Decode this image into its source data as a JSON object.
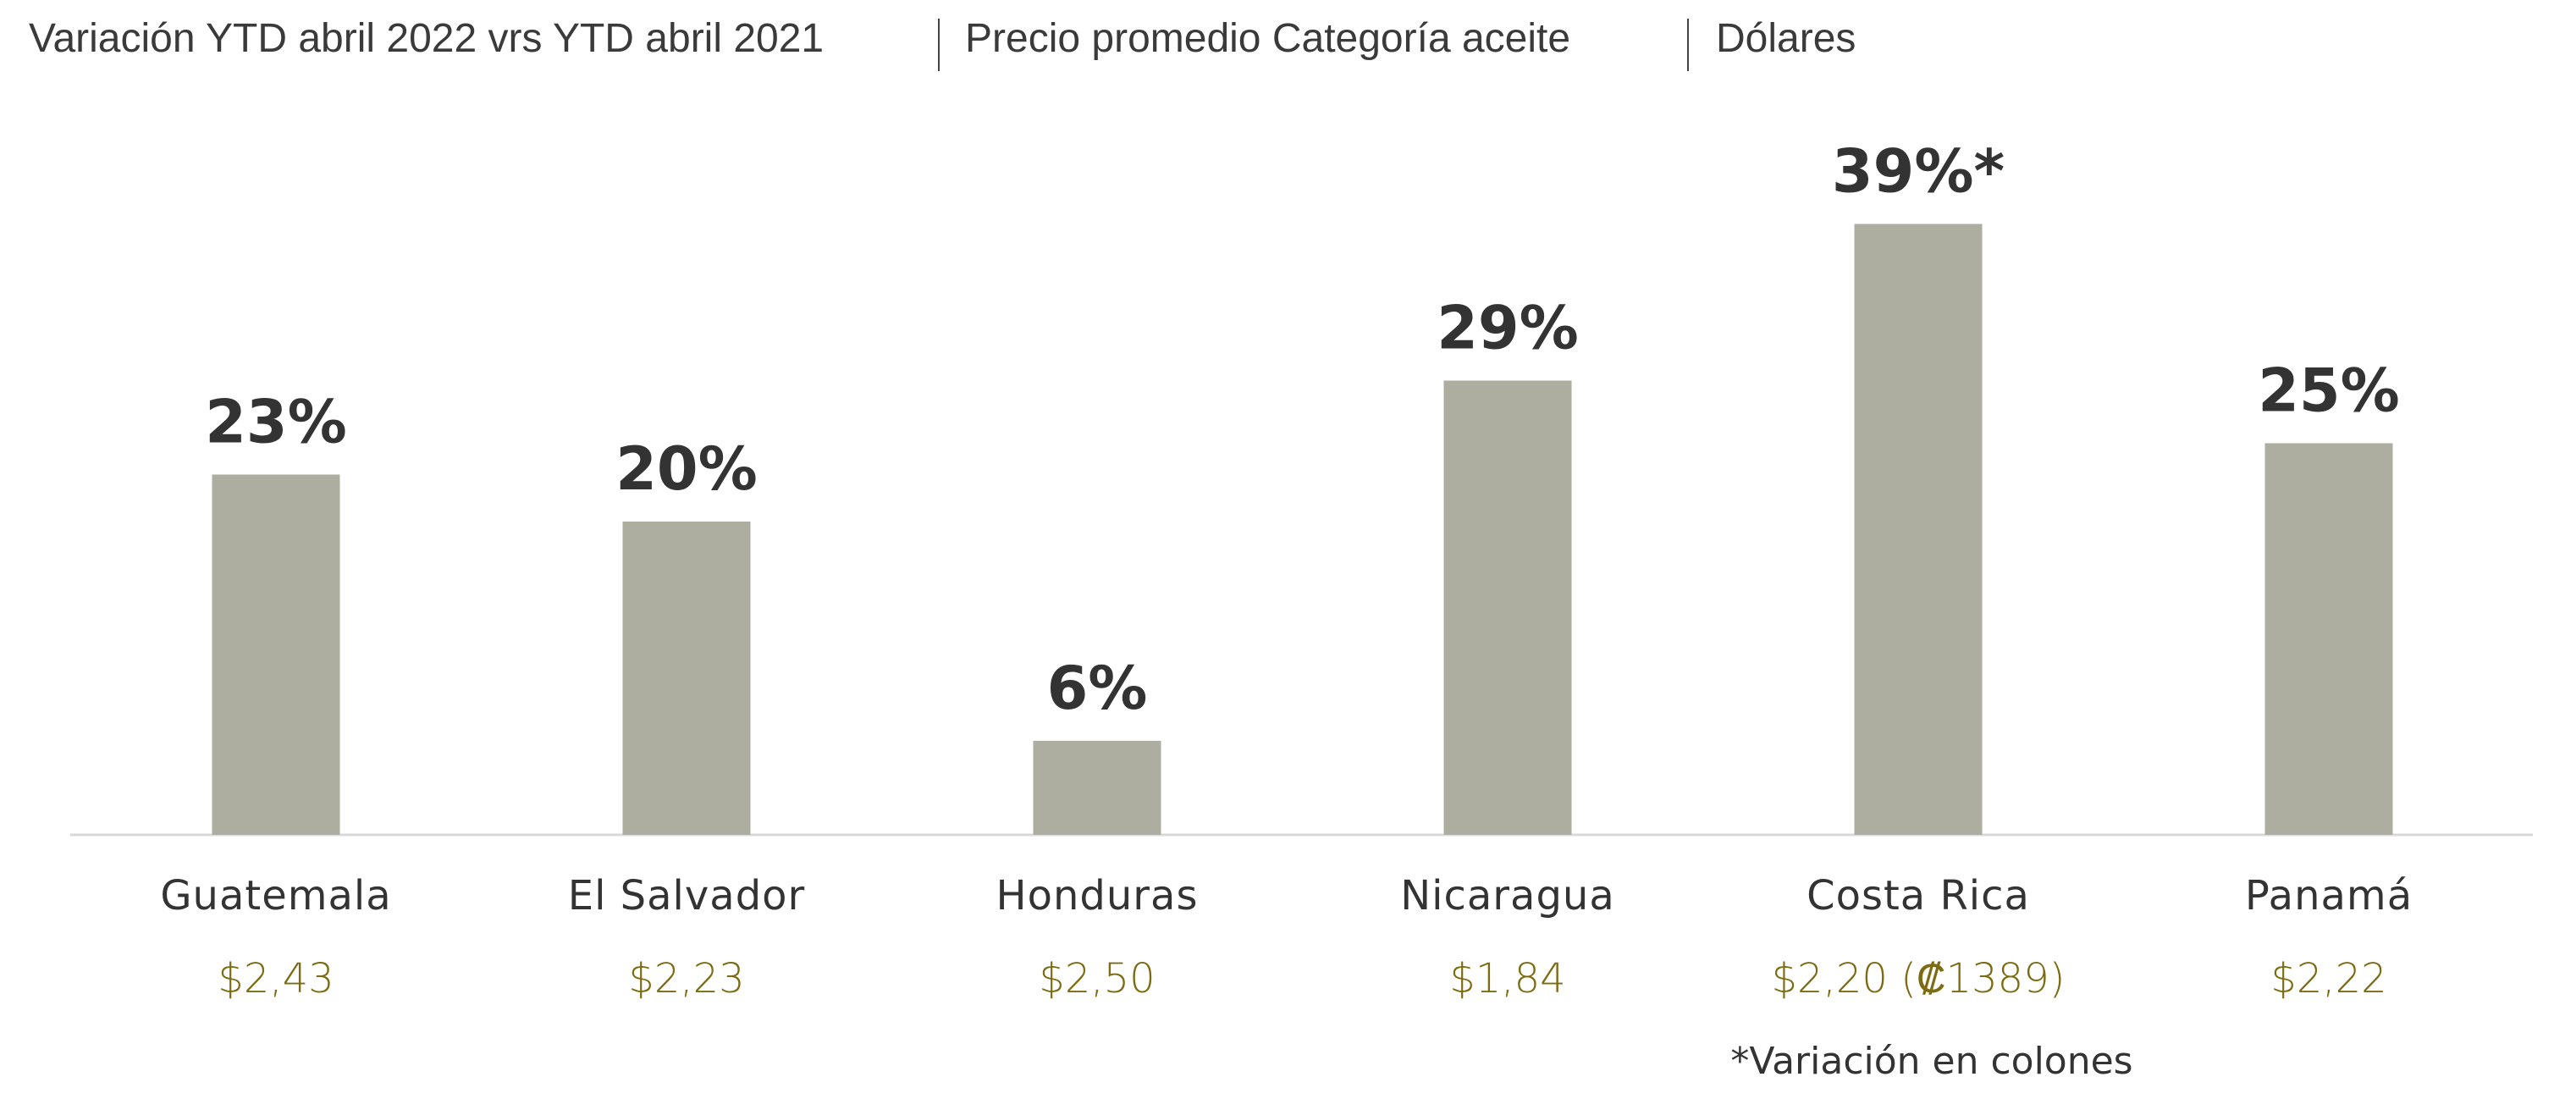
{
  "chart_data": {
    "type": "bar",
    "title_parts": [
      "Variación YTD abril 2022 vrs YTD abril 2021",
      "Precio promedio Categoría aceite",
      "Dólares"
    ],
    "categories": [
      "Guatemala",
      "El Salvador",
      "Honduras",
      "Nicaragua",
      "Costa Rica",
      "Panamá"
    ],
    "values": [
      23,
      20,
      6,
      29,
      39,
      25
    ],
    "value_labels": [
      "23%",
      "20%",
      "6%",
      "29%",
      "39%*",
      "25%"
    ],
    "price_labels": [
      "$2,43",
      "$2,23",
      "$2,50",
      "$1,84",
      "$2,20 (₡1389)",
      "$2,22"
    ],
    "footnote": "*Variación en colones",
    "ylim": [
      0,
      40
    ],
    "grid": false,
    "colors": {
      "bar": "#adaea0",
      "text": "#333333",
      "price": "#7d6b12",
      "axis": "#d9d9d9"
    }
  }
}
